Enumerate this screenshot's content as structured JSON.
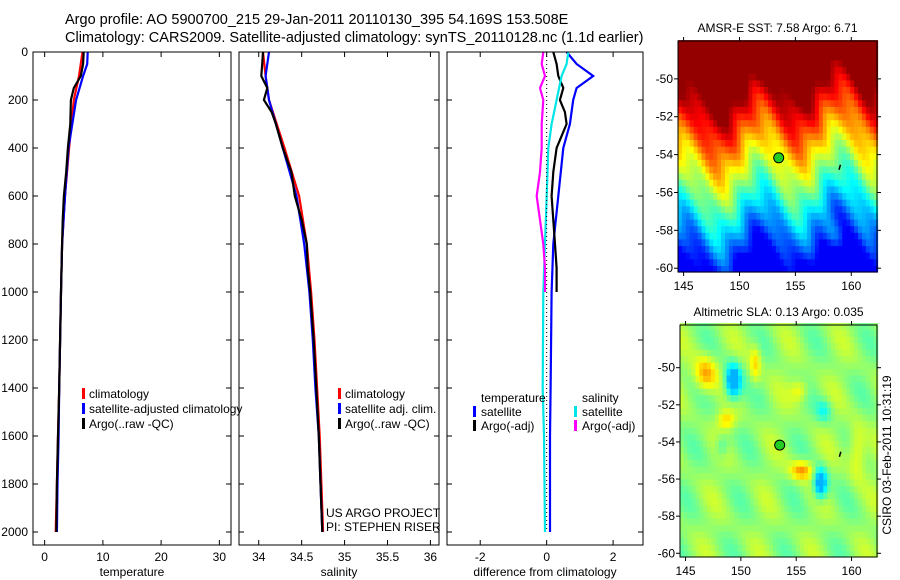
{
  "header": {
    "line1": "Argo profile: AO 5900700_215 29-Jan-2011 20110130_395 54.169S 153.508E",
    "line2": "Climatology: CARS2009. Satellite-adjusted climatology: synTS_20110128.nc (1.1d earlier)"
  },
  "credit": {
    "project": "US ARGO PROJECT",
    "pi": "PI: STEPHEN RISER",
    "stamp": "CSIRO 03-Feb-2011 10:31:19"
  },
  "colors": {
    "red": "#ff0000",
    "blue": "#0000ff",
    "black": "#000000",
    "cyan": "#00e5e5",
    "magenta": "#ff00ff"
  },
  "chart_data": [
    {
      "type": "line",
      "id": "temperature",
      "xlabel": "temperature",
      "ylabel": "",
      "xlim": [
        -2,
        32
      ],
      "ylim": [
        0,
        2050
      ],
      "y_inverted": true,
      "xticks": [
        "0",
        "10",
        "20",
        "30"
      ],
      "xtick_values": [
        0,
        10,
        20,
        30
      ],
      "yticks": [
        "0",
        "200",
        "400",
        "600",
        "800",
        "1000",
        "1200",
        "1400",
        "1600",
        "1800",
        "2000"
      ],
      "ytick_values": [
        0,
        200,
        400,
        600,
        800,
        1000,
        1200,
        1400,
        1600,
        1800,
        2000
      ],
      "legend": [
        "climatology",
        "satellite-adjusted climatology",
        "Argo(..raw -QC)"
      ],
      "legend_placement": "lower-center",
      "series": [
        {
          "name": "climatology",
          "color": "#ff0000",
          "depth": [
            0,
            100,
            200,
            400,
            600,
            800,
            1000,
            1400,
            1600,
            1800,
            2000
          ],
          "values": [
            6.5,
            5.9,
            5.0,
            4.2,
            3.5,
            3.0,
            2.8,
            2.5,
            2.3,
            2.1,
            1.9
          ]
        },
        {
          "name": "satellite-adjusted climatology",
          "color": "#0000ff",
          "depth": [
            0,
            50,
            100,
            200,
            400,
            600,
            800,
            1000,
            1400,
            1600,
            1800,
            2000
          ],
          "values": [
            7.4,
            7.3,
            6.6,
            5.4,
            4.1,
            3.5,
            3.0,
            2.8,
            2.5,
            2.4,
            2.2,
            2.1
          ]
        },
        {
          "name": "Argo(..raw -QC)",
          "color": "#000000",
          "depth": [
            0,
            50,
            100,
            150,
            200,
            300,
            400,
            500,
            600,
            700,
            800,
            1000,
            1400,
            1600,
            1800,
            2000
          ],
          "values": [
            6.7,
            6.6,
            6.2,
            5.0,
            4.5,
            4.4,
            4.0,
            3.7,
            3.3,
            3.1,
            3.0,
            2.8,
            2.5,
            2.3,
            2.1,
            2.0
          ]
        }
      ]
    },
    {
      "type": "line",
      "id": "salinity",
      "xlabel": "salinity",
      "xlim": [
        33.77,
        36.1
      ],
      "ylim": [
        0,
        2050
      ],
      "y_inverted": true,
      "xticks": [
        "34",
        "34.5",
        "35",
        "35.5",
        "36"
      ],
      "xtick_values": [
        34,
        34.5,
        35,
        35.5,
        36
      ],
      "legend": [
        "climatology",
        "satellite adj. clim.",
        "Argo(..raw -QC)"
      ],
      "legend_placement": "lower-right",
      "series": [
        {
          "name": "climatology",
          "color": "#ff0000",
          "depth": [
            0,
            100,
            200,
            400,
            600,
            800,
            1000,
            1200,
            1400,
            1600,
            1800,
            2000
          ],
          "values": [
            34.05,
            34.08,
            34.12,
            34.3,
            34.47,
            34.56,
            34.61,
            34.65,
            34.68,
            34.71,
            34.73,
            34.75
          ]
        },
        {
          "name": "satellite adj. clim.",
          "color": "#0000ff",
          "depth": [
            0,
            50,
            100,
            200,
            400,
            600,
            800,
            1000,
            1200,
            1400,
            1600,
            1800,
            2000
          ],
          "values": [
            34.12,
            34.1,
            34.08,
            34.12,
            34.28,
            34.44,
            34.53,
            34.59,
            34.63,
            34.66,
            34.7,
            34.72,
            34.74
          ]
        },
        {
          "name": "Argo(..raw -QC)",
          "color": "#000000",
          "depth": [
            0,
            50,
            100,
            150,
            200,
            250,
            300,
            400,
            500,
            600,
            700,
            800,
            900,
            1000,
            1200,
            1400,
            1600,
            1800,
            2000
          ],
          "values": [
            34.05,
            34.04,
            34.03,
            34.1,
            34.06,
            34.15,
            34.2,
            34.28,
            34.38,
            34.42,
            34.5,
            34.56,
            34.57,
            34.6,
            34.64,
            34.67,
            34.7,
            34.72,
            34.74
          ]
        }
      ]
    },
    {
      "type": "line",
      "id": "difference",
      "xlabel": "difference from climatology",
      "xlim": [
        -3,
        2.9
      ],
      "ylim": [
        0,
        2050
      ],
      "y_inverted": true,
      "xticks": [
        "-2",
        "0",
        "2"
      ],
      "xtick_values": [
        -2,
        0,
        2
      ],
      "legend_groups": [
        {
          "title": "temperature",
          "items": [
            "satellite",
            "Argo(-adj)"
          ]
        },
        {
          "title": "salinity",
          "items": [
            "satellite",
            "Argo(-adj)"
          ]
        }
      ],
      "legend_placement": "lower-center",
      "series": [
        {
          "name": "temperature satellite",
          "color": "#0000ff",
          "depth": [
            0,
            50,
            100,
            150,
            200,
            300,
            400,
            600,
            800,
            1000,
            1400,
            1600,
            2000
          ],
          "values": [
            0.6,
            0.9,
            1.4,
            0.9,
            0.8,
            0.7,
            0.5,
            0.35,
            0.2,
            0.15,
            0.12,
            0.1,
            0.1
          ]
        },
        {
          "name": "temperature Argo(-adj)",
          "color": "#000000",
          "depth": [
            0,
            50,
            100,
            150,
            200,
            250,
            300,
            400,
            500,
            600,
            700,
            800,
            900,
            1000
          ],
          "values": [
            0.2,
            0.3,
            0.35,
            0.5,
            0.4,
            0.55,
            0.6,
            0.3,
            0.2,
            0.15,
            0.2,
            0.25,
            0.3,
            0.3
          ]
        },
        {
          "name": "salinity satellite",
          "color": "#00e5e5",
          "depth": [
            0,
            50,
            100,
            200,
            300,
            400,
            600,
            800,
            1000,
            1400,
            1600,
            2000
          ],
          "values": [
            0.65,
            0.6,
            0.45,
            0.3,
            0.15,
            0.05,
            0.0,
            -0.05,
            -0.1,
            -0.12,
            -0.08,
            -0.05
          ]
        },
        {
          "name": "salinity Argo(-adj)",
          "color": "#ff00ff",
          "depth": [
            0,
            50,
            100,
            150,
            200,
            300,
            400,
            500,
            600,
            700,
            800,
            900,
            1000
          ],
          "values": [
            -0.1,
            -0.15,
            -0.05,
            -0.2,
            -0.1,
            -0.15,
            -0.15,
            -0.2,
            -0.3,
            -0.2,
            -0.1,
            -0.05,
            -0.05
          ]
        }
      ]
    },
    {
      "type": "heatmap",
      "id": "sst-map",
      "title": "AMSR-E SST: 7.58 Argo: 6.71",
      "xlim": [
        144.5,
        162.3
      ],
      "ylim": [
        -60.2,
        -48.0
      ],
      "xticks": [
        "145",
        "150",
        "155",
        "160"
      ],
      "xtick_values": [
        145,
        150,
        155,
        160
      ],
      "yticks": [
        "-50",
        "-52",
        "-54",
        "-56",
        "-58",
        "-60"
      ],
      "ytick_values": [
        -50,
        -52,
        -54,
        -56,
        -58,
        -60
      ],
      "marker": {
        "lon": 153.508,
        "lat": -54.169
      }
    },
    {
      "type": "heatmap",
      "id": "sla-map",
      "title": "Altimetric SLA: 0.13 Argo: 0.035",
      "xlim": [
        144.5,
        162.3
      ],
      "ylim": [
        -60.2,
        -47.7
      ],
      "xticks": [
        "145",
        "150",
        "155",
        "160"
      ],
      "xtick_values": [
        145,
        150,
        155,
        160
      ],
      "yticks": [
        "-50",
        "-52",
        "-54",
        "-56",
        "-58",
        "-60"
      ],
      "ytick_values": [
        -50,
        -52,
        -54,
        -56,
        -58,
        -60
      ],
      "marker": {
        "lon": 153.508,
        "lat": -54.169
      }
    }
  ]
}
